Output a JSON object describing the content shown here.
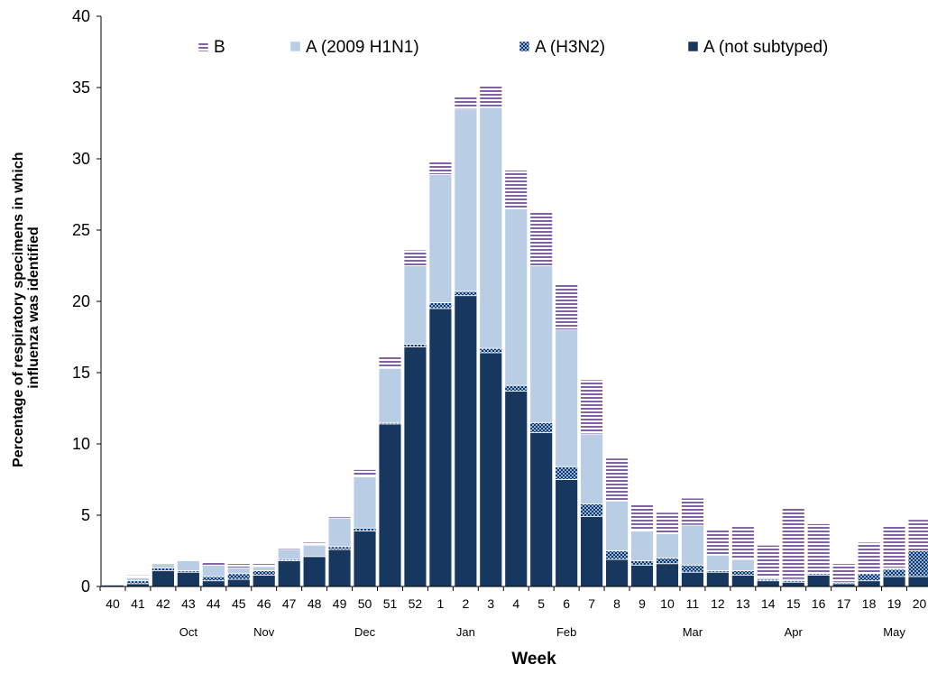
{
  "chart_data": {
    "type": "bar",
    "stacked": true,
    "xlabel": "Week",
    "ylabel_lines": [
      "Percentage of respiratory specimens in which",
      "influenza was identified"
    ],
    "ylim": [
      0,
      40
    ],
    "yticks": [
      0,
      5,
      10,
      15,
      20,
      25,
      30,
      35,
      40
    ],
    "grid": false,
    "legend_position": "top",
    "categories": [
      "40",
      "41",
      "42",
      "43",
      "44",
      "45",
      "46",
      "47",
      "48",
      "49",
      "50",
      "51",
      "52",
      "1",
      "2",
      "3",
      "4",
      "5",
      "6",
      "7",
      "8",
      "9",
      "10",
      "11",
      "12",
      "13",
      "14",
      "15",
      "16",
      "17",
      "18",
      "19",
      "20"
    ],
    "month_labels": [
      {
        "label": "Oct",
        "center_category": 43
      },
      {
        "label": "Nov",
        "center_category": 46
      },
      {
        "label": "Dec",
        "center_category": 50
      },
      {
        "label": "Jan",
        "center_category": 2
      },
      {
        "label": "Feb",
        "center_category": 6
      },
      {
        "label": "Mar",
        "center_category": 11
      },
      {
        "label": "Apr",
        "center_category": 15
      },
      {
        "label": "May",
        "center_category": 19
      }
    ],
    "series": [
      {
        "name": "A (not subtyped)",
        "color": "#17375e",
        "pattern": "solid",
        "values": [
          0.1,
          0.2,
          1.1,
          1.0,
          0.4,
          0.5,
          0.8,
          1.8,
          2.1,
          2.6,
          3.9,
          11.4,
          16.8,
          19.5,
          20.4,
          16.4,
          13.7,
          10.8,
          7.5,
          4.9,
          1.9,
          1.5,
          1.6,
          1.0,
          1.0,
          0.8,
          0.4,
          0.3,
          0.8,
          0.2,
          0.4,
          0.7,
          0.7
        ]
      },
      {
        "name": "A (H3N2)",
        "color": "#4f81bd",
        "pattern": "checker",
        "values": [
          0.0,
          0.2,
          0.2,
          0.1,
          0.3,
          0.4,
          0.3,
          0.1,
          0.0,
          0.2,
          0.2,
          0.1,
          0.2,
          0.4,
          0.3,
          0.3,
          0.4,
          0.7,
          0.9,
          0.9,
          0.6,
          0.3,
          0.4,
          0.5,
          0.1,
          0.3,
          0.1,
          0.1,
          0.1,
          0.1,
          0.5,
          0.5,
          1.8
        ]
      },
      {
        "name": "A (2009 H1N1)",
        "color": "#b9cde5",
        "pattern": "solid",
        "values": [
          0.0,
          0.2,
          0.3,
          0.7,
          0.8,
          0.4,
          0.3,
          0.7,
          0.8,
          2.0,
          3.6,
          3.8,
          5.5,
          9.0,
          12.8,
          16.9,
          12.4,
          11.0,
          9.6,
          4.9,
          3.5,
          2.1,
          1.7,
          2.8,
          1.1,
          0.8,
          0.1,
          0.1,
          0.0,
          0.0,
          0.0,
          0.1,
          0.0
        ]
      },
      {
        "name": "B",
        "color": "#8064a2",
        "pattern": "stripes",
        "values": [
          0.0,
          0.2,
          0.0,
          0.0,
          0.3,
          0.3,
          0.2,
          0.1,
          0.2,
          0.1,
          0.5,
          0.9,
          1.1,
          0.9,
          0.9,
          1.5,
          2.7,
          3.8,
          3.2,
          3.8,
          3.0,
          1.9,
          1.5,
          1.9,
          1.8,
          2.3,
          2.3,
          5.0,
          3.5,
          1.3,
          2.2,
          3.0,
          2.2
        ]
      }
    ],
    "legend_order": [
      "B",
      "A (2009 H1N1)",
      "A (H3N2)",
      "A (not subtyped)"
    ]
  }
}
